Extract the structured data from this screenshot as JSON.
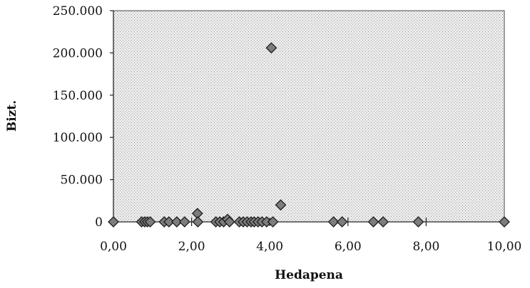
{
  "chart_data": {
    "type": "scatter",
    "title": "",
    "xlabel": "Hedapena",
    "ylabel": "Bizt.",
    "xlim": [
      0,
      10
    ],
    "ylim": [
      0,
      250000
    ],
    "x_ticks": [
      "0,00",
      "2,00",
      "4,00",
      "6,00",
      "8,00",
      "10,00"
    ],
    "y_ticks": [
      "0",
      "50.000",
      "100.000",
      "150.000",
      "200.000",
      "250.000"
    ],
    "grid": false,
    "legend": "none",
    "plot_background": "stippled grey",
    "marker": "diamond",
    "marker_color": "#7d7d7d",
    "points": [
      {
        "x": 0.0,
        "y": 0
      },
      {
        "x": 0.72,
        "y": 0
      },
      {
        "x": 0.8,
        "y": 0
      },
      {
        "x": 0.87,
        "y": 0
      },
      {
        "x": 0.94,
        "y": 0
      },
      {
        "x": 1.3,
        "y": 0
      },
      {
        "x": 1.42,
        "y": 0
      },
      {
        "x": 1.62,
        "y": 0
      },
      {
        "x": 1.82,
        "y": 0
      },
      {
        "x": 2.15,
        "y": 10000
      },
      {
        "x": 2.16,
        "y": 0
      },
      {
        "x": 2.62,
        "y": 0
      },
      {
        "x": 2.72,
        "y": 0
      },
      {
        "x": 2.82,
        "y": 0
      },
      {
        "x": 2.92,
        "y": 3000
      },
      {
        "x": 2.97,
        "y": 0
      },
      {
        "x": 3.22,
        "y": 0
      },
      {
        "x": 3.32,
        "y": 0
      },
      {
        "x": 3.42,
        "y": 0
      },
      {
        "x": 3.52,
        "y": 0
      },
      {
        "x": 3.6,
        "y": 0
      },
      {
        "x": 3.7,
        "y": 0
      },
      {
        "x": 3.8,
        "y": 0
      },
      {
        "x": 3.92,
        "y": 0
      },
      {
        "x": 4.04,
        "y": 206000
      },
      {
        "x": 4.08,
        "y": 0
      },
      {
        "x": 4.28,
        "y": 20000
      },
      {
        "x": 5.63,
        "y": 0
      },
      {
        "x": 5.85,
        "y": 0
      },
      {
        "x": 6.65,
        "y": 0
      },
      {
        "x": 6.9,
        "y": 0
      },
      {
        "x": 7.8,
        "y": 0
      },
      {
        "x": 10.0,
        "y": 0
      }
    ]
  }
}
